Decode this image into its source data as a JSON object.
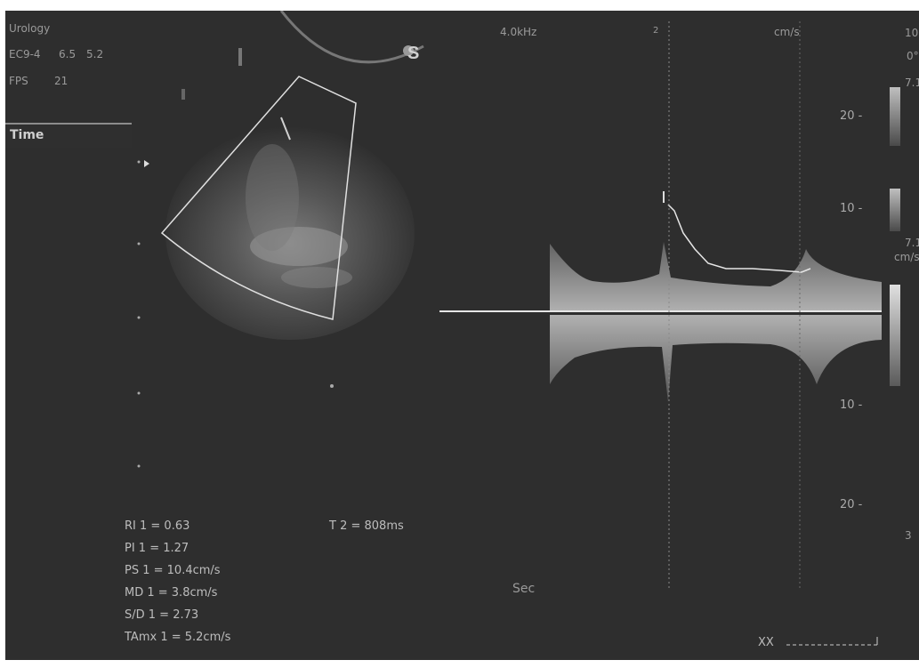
{
  "header": {
    "exam": "Urology",
    "probe": "EC9-4",
    "probe_v1": "6.5",
    "probe_v2": "5.2",
    "fps_label": "FPS",
    "fps_value": "21",
    "freq": "4.0kHz",
    "marker_2": "2",
    "units": "cm/s",
    "r_top": "10",
    "r_angle": "0°",
    "r_71a": "7.1",
    "r_71b": "7.1",
    "r_cms": "cm/s",
    "r_bottom": "3"
  },
  "mode_tab": {
    "label": "Time"
  },
  "probe_icon": "S",
  "scale": {
    "top20": "20 -",
    "top10": "10 -",
    "bot10": "10 -",
    "bot20": "20 -"
  },
  "measurements": {
    "ri": "RI 1 = 0.63",
    "pi": "PI 1 = 1.27",
    "ps": "PS 1 = 10.4cm/s",
    "md": "MD 1 = 3.8cm/s",
    "sd": "S/D 1 = 2.73",
    "tamx": "TAmx 1 = 5.2cm/s",
    "t2": "T 2 = 808ms"
  },
  "axis": {
    "time_unit": "Sec"
  },
  "footer": {
    "xx": "XX"
  }
}
